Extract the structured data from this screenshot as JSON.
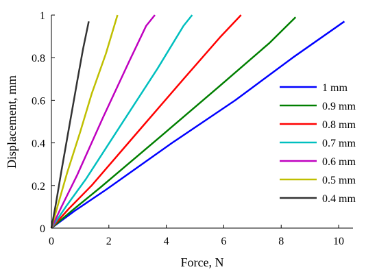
{
  "chart_data": {
    "type": "line",
    "title": "",
    "xlabel": "Force, N",
    "ylabel": "Displacement, mm",
    "xlim": [
      0,
      10.5
    ],
    "ylim": [
      0,
      1
    ],
    "xticks": [
      0,
      2,
      4,
      6,
      8,
      10
    ],
    "yticks": [
      0,
      0.2,
      0.4,
      0.6,
      0.8,
      1
    ],
    "xtick_labels": [
      "0",
      "2",
      "4",
      "6",
      "8",
      "10"
    ],
    "ytick_labels": [
      "0",
      "0.2",
      "0.4",
      "0.6",
      "0.8",
      "1"
    ],
    "grid": false,
    "legend_position": "right",
    "series": [
      {
        "name": "1 mm",
        "color": "#0000ff",
        "x": [
          0,
          0.8,
          1.9,
          4.2,
          6.4,
          8.4,
          10.2
        ],
        "y": [
          0,
          0.08,
          0.18,
          0.4,
          0.6,
          0.8,
          0.97
        ]
      },
      {
        "name": "0.9 mm",
        "color": "#007f00",
        "x": [
          0,
          0.7,
          1.7,
          3.8,
          5.8,
          7.6,
          8.5
        ],
        "y": [
          0,
          0.08,
          0.19,
          0.43,
          0.66,
          0.87,
          0.99
        ]
      },
      {
        "name": "0.8 mm",
        "color": "#ff0000",
        "x": [
          0,
          0.6,
          1.4,
          3.0,
          4.6,
          5.9,
          6.6
        ],
        "y": [
          0,
          0.09,
          0.2,
          0.45,
          0.7,
          0.9,
          1.0
        ]
      },
      {
        "name": "0.7 mm",
        "color": "#00bfbf",
        "x": [
          0,
          0.5,
          1.2,
          2.4,
          3.7,
          4.6,
          4.9
        ],
        "y": [
          0,
          0.1,
          0.23,
          0.48,
          0.75,
          0.95,
          1.0
        ]
      },
      {
        "name": "0.6 mm",
        "color": "#bf00bf",
        "x": [
          0,
          0.35,
          0.9,
          1.8,
          2.7,
          3.3,
          3.6
        ],
        "y": [
          0,
          0.1,
          0.25,
          0.52,
          0.78,
          0.95,
          1.0
        ]
      },
      {
        "name": "0.5 mm",
        "color": "#bfbf00",
        "x": [
          0,
          0.25,
          0.55,
          1.0,
          1.4,
          1.9,
          2.3
        ],
        "y": [
          0,
          0.12,
          0.26,
          0.45,
          0.63,
          0.82,
          1.0
        ]
      },
      {
        "name": "0.4 mm",
        "color": "#333333",
        "x": [
          0,
          0.15,
          0.35,
          0.6,
          0.9,
          1.1,
          1.3
        ],
        "y": [
          0,
          0.11,
          0.27,
          0.46,
          0.69,
          0.84,
          0.97
        ]
      }
    ]
  }
}
